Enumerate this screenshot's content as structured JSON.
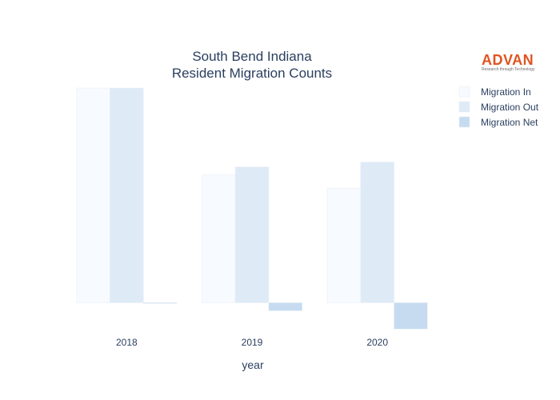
{
  "brand": {
    "name": "ADVAN",
    "tagline": "Research through Technology",
    "color": "#e0541f"
  },
  "chart_data": {
    "type": "bar",
    "title_lines": [
      "South Bend Indiana",
      "Resident Migration Counts"
    ],
    "xlabel": "year",
    "ylabel": "",
    "categories": [
      "2018",
      "2019",
      "2020"
    ],
    "series": [
      {
        "name": "Migration In",
        "color": "#f7fbff",
        "values": [
          4000,
          2380,
          2130
        ]
      },
      {
        "name": "Migration Out",
        "color": "#deebf7",
        "values": [
          4000,
          2530,
          2620
        ]
      },
      {
        "name": "Migration Net",
        "color": "#c6dbef",
        "values": [
          -10,
          -150,
          -490
        ]
      }
    ],
    "ylim": [
      -620,
      4150
    ],
    "grid": false,
    "y_tick_labels_visible": false,
    "legend_position": "top-right"
  }
}
